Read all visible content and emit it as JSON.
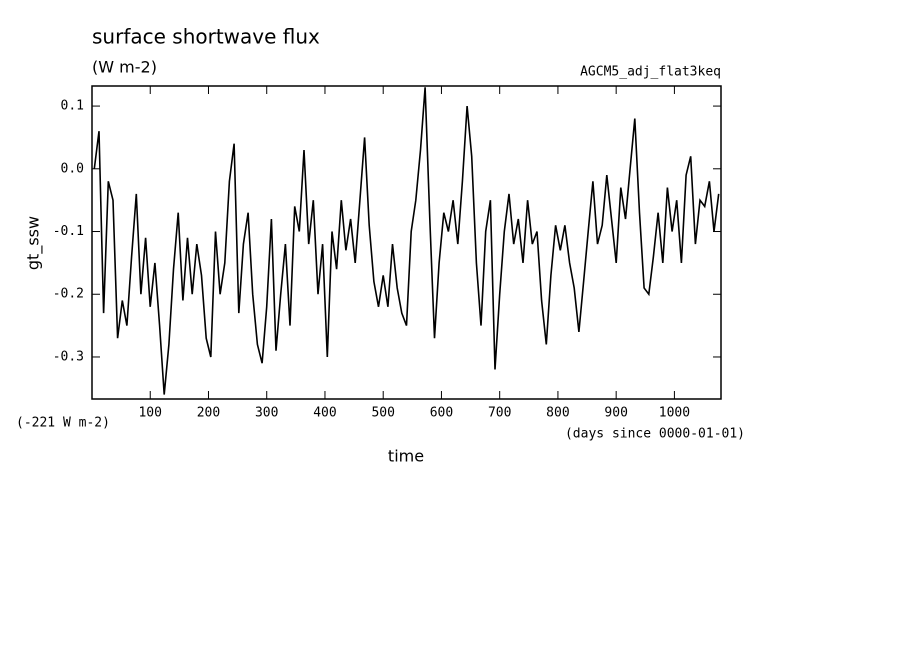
{
  "chart_data": {
    "type": "line",
    "title": "surface shortwave flux",
    "subtitle": "(W m-2)",
    "annotation_right": "AGCM5_adj_flat3keq",
    "annotation_offset": "(-221 W m-2)",
    "x_unit": "(days since 0000-01-01)",
    "xlabel": "time",
    "ylabel": "gt_ssw",
    "color": "#000000",
    "xlim": [
      0,
      1080
    ],
    "ylim": [
      -0.367,
      0.132
    ],
    "xticks": [
      100,
      200,
      300,
      400,
      500,
      600,
      700,
      800,
      900,
      1000
    ],
    "yticks": [
      -0.3,
      -0.2,
      -0.1,
      {
        "value": 0,
        "label": "0.0"
      },
      0.1
    ],
    "x": [
      4,
      12,
      20,
      28,
      36,
      44,
      52,
      60,
      68,
      76,
      84,
      92,
      100,
      108,
      116,
      124,
      132,
      140,
      148,
      156,
      164,
      172,
      180,
      188,
      196,
      204,
      212,
      220,
      228,
      236,
      244,
      252,
      260,
      268,
      276,
      284,
      292,
      300,
      308,
      316,
      324,
      332,
      340,
      348,
      356,
      364,
      372,
      380,
      388,
      396,
      404,
      412,
      420,
      428,
      436,
      444,
      452,
      460,
      468,
      476,
      484,
      492,
      500,
      508,
      516,
      524,
      532,
      540,
      548,
      556,
      564,
      572,
      580,
      588,
      596,
      604,
      612,
      620,
      628,
      636,
      644,
      652,
      660,
      668,
      676,
      684,
      692,
      700,
      708,
      716,
      724,
      732,
      740,
      748,
      756,
      764,
      772,
      780,
      788,
      796,
      804,
      812,
      820,
      828,
      836,
      844,
      852,
      860,
      868,
      876,
      884,
      892,
      900,
      908,
      916,
      924,
      932,
      940,
      948,
      956,
      964,
      972,
      980,
      988,
      996,
      1004,
      1012,
      1020,
      1028,
      1036,
      1044,
      1052,
      1060,
      1068,
      1076
    ],
    "values": [
      0.0,
      0.06,
      -0.23,
      -0.02,
      -0.05,
      -0.27,
      -0.21,
      -0.25,
      -0.14,
      -0.04,
      -0.2,
      -0.11,
      -0.22,
      -0.15,
      -0.25,
      -0.36,
      -0.28,
      -0.16,
      -0.07,
      -0.21,
      -0.11,
      -0.2,
      -0.12,
      -0.17,
      -0.27,
      -0.3,
      -0.1,
      -0.2,
      -0.15,
      -0.02,
      0.04,
      -0.23,
      -0.12,
      -0.07,
      -0.2,
      -0.28,
      -0.31,
      -0.22,
      -0.08,
      -0.29,
      -0.2,
      -0.12,
      -0.25,
      -0.06,
      -0.1,
      0.03,
      -0.12,
      -0.05,
      -0.2,
      -0.12,
      -0.3,
      -0.1,
      -0.16,
      -0.05,
      -0.13,
      -0.08,
      -0.15,
      -0.05,
      0.05,
      -0.09,
      -0.18,
      -0.22,
      -0.17,
      -0.22,
      -0.12,
      -0.19,
      -0.23,
      -0.25,
      -0.1,
      -0.05,
      0.03,
      0.13,
      -0.08,
      -0.27,
      -0.15,
      -0.07,
      -0.1,
      -0.05,
      -0.12,
      -0.02,
      0.1,
      0.02,
      -0.15,
      -0.25,
      -0.1,
      -0.05,
      -0.32,
      -0.2,
      -0.1,
      -0.04,
      -0.12,
      -0.08,
      -0.15,
      -0.05,
      -0.12,
      -0.1,
      -0.21,
      -0.28,
      -0.17,
      -0.09,
      -0.13,
      -0.09,
      -0.15,
      -0.19,
      -0.26,
      -0.18,
      -0.1,
      -0.02,
      -0.12,
      -0.09,
      -0.01,
      -0.08,
      -0.15,
      -0.03,
      -0.08,
      0.0,
      0.08,
      -0.07,
      -0.19,
      -0.2,
      -0.14,
      -0.07,
      -0.15,
      -0.03,
      -0.1,
      -0.05,
      -0.15,
      -0.01,
      0.02,
      -0.12,
      -0.05,
      -0.06,
      -0.02,
      -0.1,
      -0.04
    ]
  }
}
